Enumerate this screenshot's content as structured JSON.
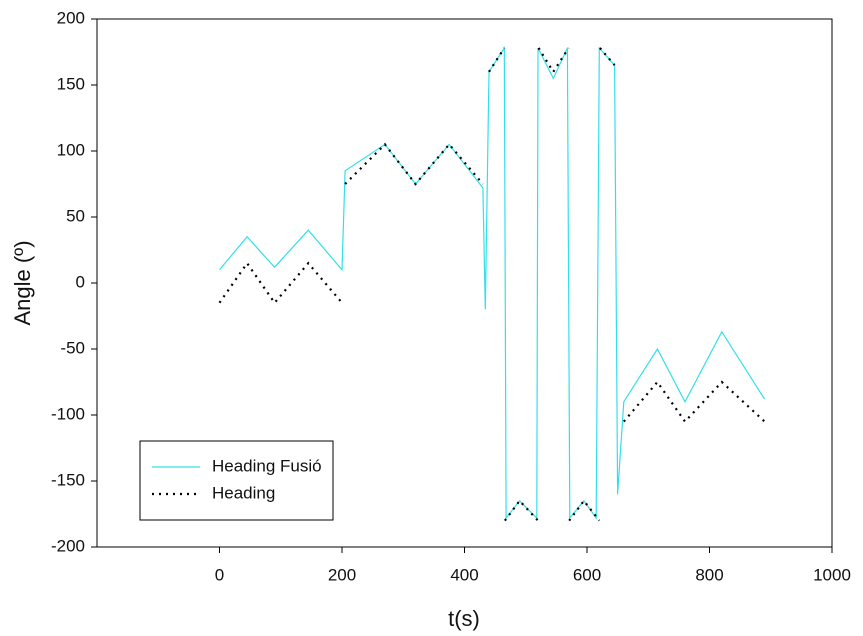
{
  "chart_data": {
    "type": "line",
    "x_label": "t(s)",
    "y_label": "Angle (º)",
    "xlim": [
      -200,
      1000
    ],
    "xticks": [
      0,
      200,
      400,
      600,
      800,
      1000
    ],
    "ylim": [
      -200,
      200
    ],
    "yticks": [
      -200,
      -150,
      -100,
      -50,
      0,
      50,
      100,
      150,
      200
    ],
    "legend": "lower left",
    "series": [
      {
        "name": "Heading Fusió",
        "color": "#33e0e8",
        "style": "solid",
        "x": [
          0,
          45,
          90,
          145,
          200,
          205,
          270,
          320,
          375,
          430,
          434,
          440,
          465,
          468,
          490,
          518,
          520,
          545,
          568,
          572,
          595,
          615,
          620,
          645,
          650,
          660,
          715,
          760,
          820,
          890
        ],
        "values": [
          10,
          35,
          12,
          40,
          10,
          85,
          105,
          75,
          105,
          72,
          -20,
          160,
          178,
          -178,
          -165,
          -178,
          178,
          155,
          178,
          -178,
          -165,
          -178,
          178,
          165,
          -160,
          -90,
          -50,
          -90,
          -37,
          -88
        ]
      },
      {
        "name": "Heading",
        "color": "#000000",
        "style": "dotted",
        "x": [
          0,
          45,
          90,
          145,
          200,
          202,
          205,
          270,
          320,
          375,
          430,
          435,
          440,
          465,
          466,
          466,
          490,
          520,
          521,
          521,
          545,
          570,
          571,
          571,
          595,
          620,
          621,
          621,
          645,
          652,
          660,
          715,
          760,
          820,
          890
        ],
        "values": [
          -15,
          15,
          -15,
          15,
          -15,
          null,
          75,
          105,
          75,
          105,
          75,
          null,
          160,
          178,
          null,
          -180,
          -165,
          -180,
          null,
          178,
          160,
          178,
          null,
          -180,
          -165,
          -180,
          null,
          178,
          165,
          null,
          -105,
          -75,
          -105,
          -75,
          -105
        ]
      }
    ]
  }
}
